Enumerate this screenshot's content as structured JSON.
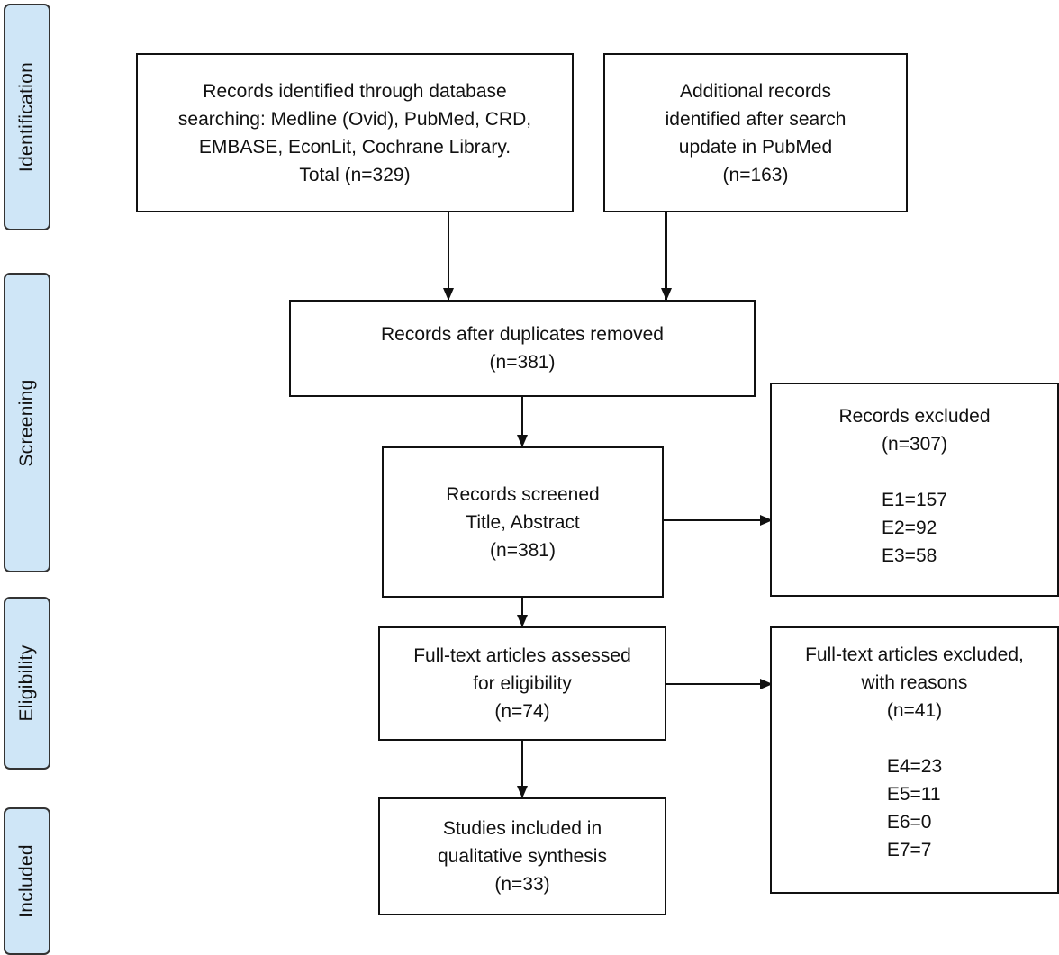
{
  "stages": {
    "identification": "Identification",
    "screening": "Screening",
    "eligibility": "Eligibility",
    "included": "Included"
  },
  "boxes": {
    "database_records": {
      "lines": [
        "Records identified through database",
        "searching: Medline (Ovid), PubMed, CRD,",
        "EMBASE, EconLit, Cochrane Library.",
        "Total (n=329)"
      ]
    },
    "additional_records": {
      "lines": [
        "Additional records",
        "identified after search",
        "update in PubMed",
        "(n=163)"
      ]
    },
    "duplicates_removed": {
      "lines": [
        "Records after duplicates removed",
        "(n=381)"
      ]
    },
    "records_screened": {
      "lines": [
        "Records screened",
        "Title, Abstract",
        "(n=381)"
      ]
    },
    "records_excluded": {
      "lines": [
        "Records excluded",
        "(n=307)"
      ],
      "reasons": [
        "E1=157",
        "E2=92",
        "E3=58"
      ]
    },
    "fulltext_assessed": {
      "lines": [
        "Full-text articles assessed",
        "for eligibility",
        "(n=74)"
      ]
    },
    "fulltext_excluded": {
      "lines": [
        "Full-text articles excluded,",
        "with reasons",
        "(n=41)"
      ],
      "reasons": [
        "E4=23",
        "E5=11",
        "E6=0",
        "E7=7"
      ]
    },
    "studies_included": {
      "lines": [
        "Studies included in",
        "qualitative synthesis",
        "(n=33)"
      ]
    }
  },
  "colors": {
    "stage_fill": "#cfe6f7",
    "stage_border": "#333333",
    "box_border": "#111111",
    "arrow": "#111111"
  }
}
